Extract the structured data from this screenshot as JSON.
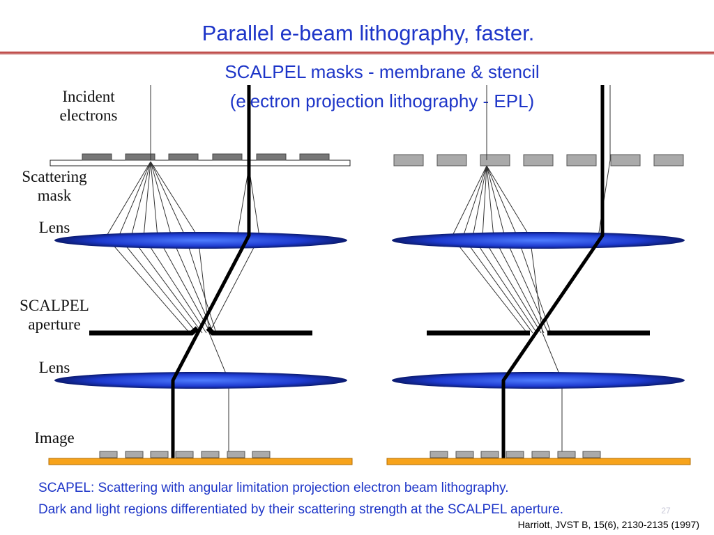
{
  "title": "Parallel e-beam lithography, faster.",
  "subtitle": [
    "SCALPEL masks - membrane & stencil",
    "(electron projection lithography - EPL)"
  ],
  "labels": [
    "Incident",
    "electrons",
    "Scattering",
    "mask",
    "Lens",
    "SCALPEL",
    "aperture",
    "Lens",
    "Image"
  ],
  "caption": [
    "SCAPEL: Scattering with angular limitation projection electron beam lithography.",
    "Dark and light regions differentiated by their scattering strength at the SCALPEL aperture."
  ],
  "citation": "Harriott, JVST B, 15(6), 2130-2135 (1997)",
  "slide_number": "27"
}
